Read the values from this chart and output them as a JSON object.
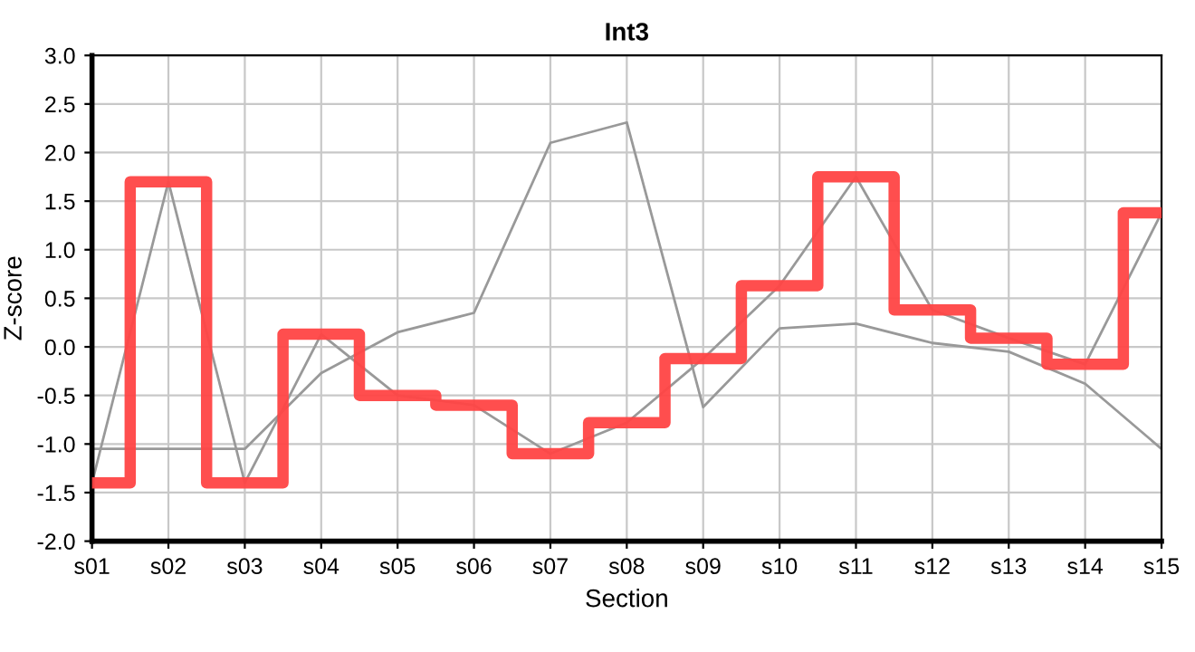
{
  "chart_data": {
    "type": "line",
    "title": "Int3",
    "xlabel": "Section",
    "ylabel": "Z-score",
    "categories": [
      "s01",
      "s02",
      "s03",
      "s04",
      "s05",
      "s06",
      "s07",
      "s08",
      "s09",
      "s10",
      "s11",
      "s12",
      "s13",
      "s14",
      "s15"
    ],
    "series": [
      {
        "color": "#999999",
        "values": [
          -1.05,
          -1.05,
          -1.05,
          -0.27,
          0.15,
          0.35,
          2.1,
          2.31,
          -0.62,
          0.19,
          0.24,
          0.04,
          -0.05,
          -0.38,
          -1.05
        ]
      },
      {
        "color": "#999999",
        "values": [
          -1.4,
          1.7,
          -1.4,
          0.13,
          -0.5,
          -0.6,
          -1.1,
          -0.78,
          -0.12,
          0.63,
          1.75,
          0.38,
          0.09,
          -0.18,
          1.38
        ]
      },
      {
        "type": "step",
        "color": "#ff4444",
        "values": [
          -1.4,
          1.7,
          -1.4,
          0.13,
          -0.5,
          -0.6,
          -1.1,
          -0.78,
          -0.12,
          0.63,
          1.75,
          0.38,
          0.09,
          -0.18,
          1.38
        ]
      }
    ],
    "ylim": [
      -2.0,
      3.0
    ],
    "yticks": [
      {
        "value": -2.0,
        "label": "-2.0"
      },
      {
        "value": -1.5,
        "label": "-1.5"
      },
      {
        "value": -1.0,
        "label": "-1.0"
      },
      {
        "value": -0.5,
        "label": "-0.5"
      },
      {
        "value": 0.0,
        "label": "0.0"
      },
      {
        "value": 0.5,
        "label": "0.5"
      },
      {
        "value": 1.0,
        "label": "1.0"
      },
      {
        "value": 1.5,
        "label": "1.5"
      },
      {
        "value": 2.0,
        "label": "2.0"
      },
      {
        "value": 2.5,
        "label": "2.5"
      },
      {
        "value": 3.0,
        "label": "3.0"
      }
    ],
    "grid": true,
    "legend": false
  }
}
